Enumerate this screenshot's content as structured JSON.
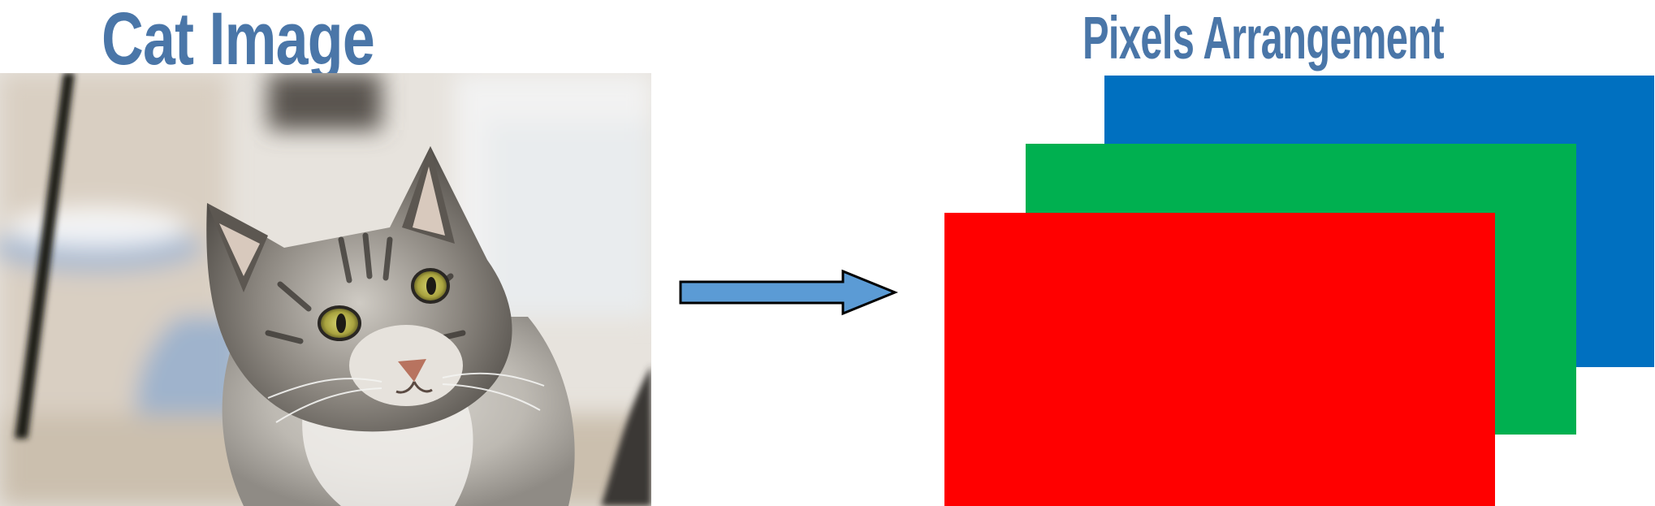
{
  "titles": {
    "left": "Cat Image",
    "right": "Pixels Arrangement"
  },
  "arrow": {
    "direction": "right",
    "fill": "#5b9bd5"
  },
  "channels": [
    {
      "name": "blue",
      "color": "#0070c0"
    },
    {
      "name": "green",
      "color": "#00b050"
    },
    {
      "name": "red",
      "color": "#ff0000"
    }
  ]
}
